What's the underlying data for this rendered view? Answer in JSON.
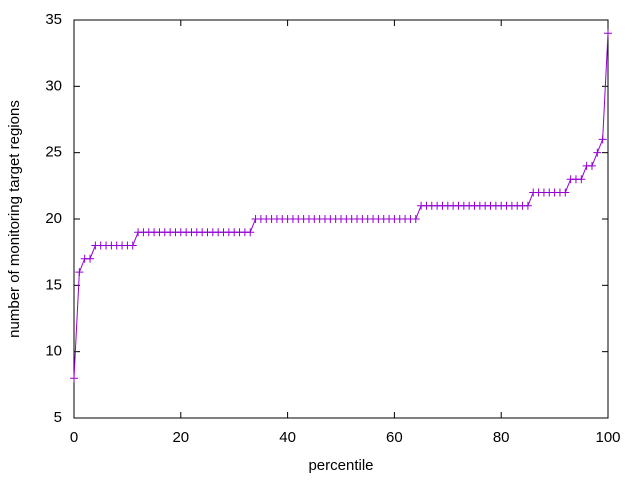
{
  "chart_data": {
    "type": "line",
    "x_label": "percentile",
    "y_label": "number of monitoring target regions",
    "x": [
      0,
      1,
      2,
      3,
      4,
      5,
      6,
      7,
      8,
      9,
      10,
      11,
      12,
      13,
      14,
      15,
      16,
      17,
      18,
      19,
      20,
      21,
      22,
      23,
      24,
      25,
      26,
      27,
      28,
      29,
      30,
      31,
      32,
      33,
      34,
      35,
      36,
      37,
      38,
      39,
      40,
      41,
      42,
      43,
      44,
      45,
      46,
      47,
      48,
      49,
      50,
      51,
      52,
      53,
      54,
      55,
      56,
      57,
      58,
      59,
      60,
      61,
      62,
      63,
      64,
      65,
      66,
      67,
      68,
      69,
      70,
      71,
      72,
      73,
      74,
      75,
      76,
      77,
      78,
      79,
      80,
      81,
      82,
      83,
      84,
      85,
      86,
      87,
      88,
      89,
      90,
      91,
      92,
      93,
      94,
      95,
      96,
      97,
      98,
      99,
      100
    ],
    "values": [
      8,
      16,
      17,
      17,
      18,
      18,
      18,
      18,
      18,
      18,
      18,
      18,
      19,
      19,
      19,
      19,
      19,
      19,
      19,
      19,
      19,
      19,
      19,
      19,
      19,
      19,
      19,
      19,
      19,
      19,
      19,
      19,
      19,
      19,
      20,
      20,
      20,
      20,
      20,
      20,
      20,
      20,
      20,
      20,
      20,
      20,
      20,
      20,
      20,
      20,
      20,
      20,
      20,
      20,
      20,
      20,
      20,
      20,
      20,
      20,
      20,
      20,
      20,
      20,
      20,
      21,
      21,
      21,
      21,
      21,
      21,
      21,
      21,
      21,
      21,
      21,
      21,
      21,
      21,
      21,
      21,
      21,
      21,
      21,
      21,
      21,
      22,
      22,
      22,
      22,
      22,
      22,
      22,
      23,
      23,
      23,
      24,
      24,
      25,
      26,
      34
    ],
    "color": "#9400d3",
    "marker": "plus",
    "xlim": [
      0,
      100
    ],
    "xticks": [
      0,
      20,
      40,
      60,
      80,
      100
    ],
    "ylim": [
      5,
      35
    ],
    "yticks": [
      5,
      10,
      15,
      20,
      25,
      30,
      35
    ],
    "grid": false
  }
}
